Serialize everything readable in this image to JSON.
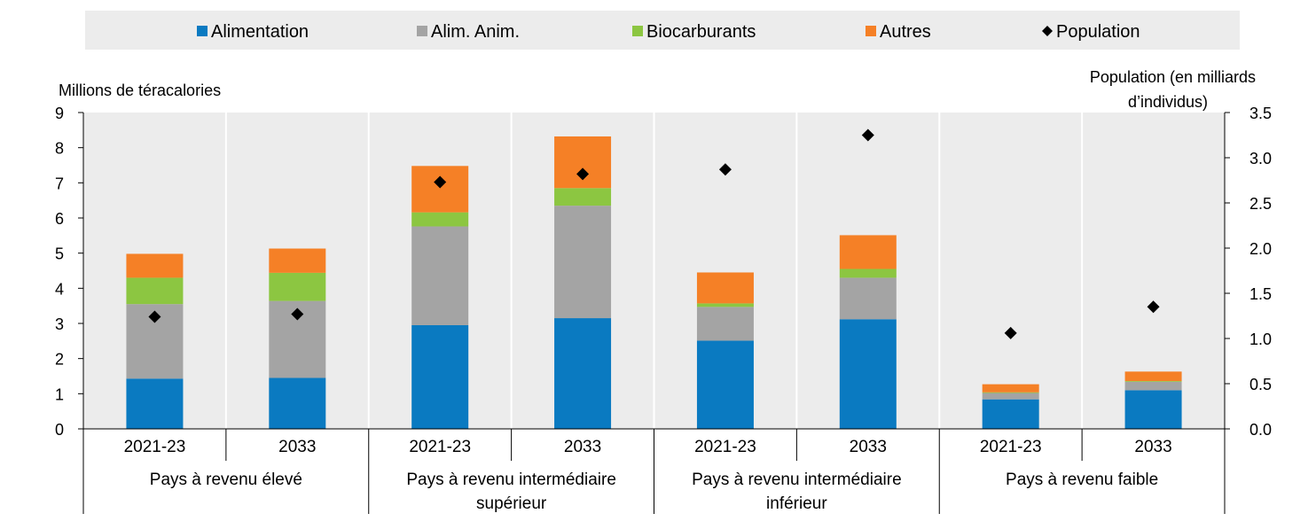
{
  "chart_data": {
    "type": "stacked-bar",
    "legend": [
      {
        "key": "alimentation",
        "label": "Alimentation",
        "color": "#0a7ac1",
        "shape": "square"
      },
      {
        "key": "alim_anim",
        "label": "Alim. Anim.",
        "color": "#a4a4a4",
        "shape": "square"
      },
      {
        "key": "biocarburants",
        "label": "Biocarburants",
        "color": "#8cc641",
        "shape": "square"
      },
      {
        "key": "autres",
        "label": "Autres",
        "color": "#f58026",
        "shape": "square"
      },
      {
        "key": "population",
        "label": "Population",
        "color": "#000000",
        "shape": "diamond"
      }
    ],
    "left_axis": {
      "label": "Millions de téracalories",
      "min": 0,
      "max": 9,
      "ticks": [
        "0",
        "1",
        "2",
        "3",
        "4",
        "5",
        "6",
        "7",
        "8",
        "9"
      ]
    },
    "right_axis": {
      "label_lines": [
        "Population (en milliards",
        "d’individus)"
      ],
      "min": 0.0,
      "max": 3.5,
      "ticks": [
        "0.0",
        "0.5",
        "1.0",
        "1.5",
        "2.0",
        "2.5",
        "3.0",
        "3.5"
      ]
    },
    "groups": [
      {
        "label_lines": [
          "Pays à revenu élevé"
        ],
        "bars": [
          {
            "period": "2021-23",
            "alimentation": 1.43,
            "alim_anim": 2.12,
            "biocarburants": 0.75,
            "autres": 0.68,
            "population": 1.24
          },
          {
            "period": "2033",
            "alimentation": 1.45,
            "alim_anim": 2.19,
            "biocarburants": 0.8,
            "autres": 0.69,
            "population": 1.27
          }
        ]
      },
      {
        "label_lines": [
          "Pays à revenu intermédiaire",
          "supérieur"
        ],
        "bars": [
          {
            "period": "2021-23",
            "alimentation": 2.95,
            "alim_anim": 2.81,
            "biocarburants": 0.4,
            "autres": 1.32,
            "population": 2.73
          },
          {
            "period": "2033",
            "alimentation": 3.15,
            "alim_anim": 3.2,
            "biocarburants": 0.5,
            "autres": 1.47,
            "population": 2.82
          }
        ]
      },
      {
        "label_lines": [
          "Pays à revenu intermédiaire",
          "inférieur"
        ],
        "bars": [
          {
            "period": "2021-23",
            "alimentation": 2.51,
            "alim_anim": 0.96,
            "biocarburants": 0.1,
            "autres": 0.88,
            "population": 2.87
          },
          {
            "period": "2033",
            "alimentation": 3.12,
            "alim_anim": 1.18,
            "biocarburants": 0.25,
            "autres": 0.96,
            "population": 3.25
          }
        ]
      },
      {
        "label_lines": [
          "Pays à revenu faible"
        ],
        "bars": [
          {
            "period": "2021-23",
            "alimentation": 0.84,
            "alim_anim": 0.18,
            "biocarburants": 0.02,
            "autres": 0.23,
            "population": 1.06
          },
          {
            "period": "2033",
            "alimentation": 1.1,
            "alim_anim": 0.24,
            "biocarburants": 0.02,
            "autres": 0.27,
            "population": 1.35
          }
        ]
      }
    ]
  }
}
